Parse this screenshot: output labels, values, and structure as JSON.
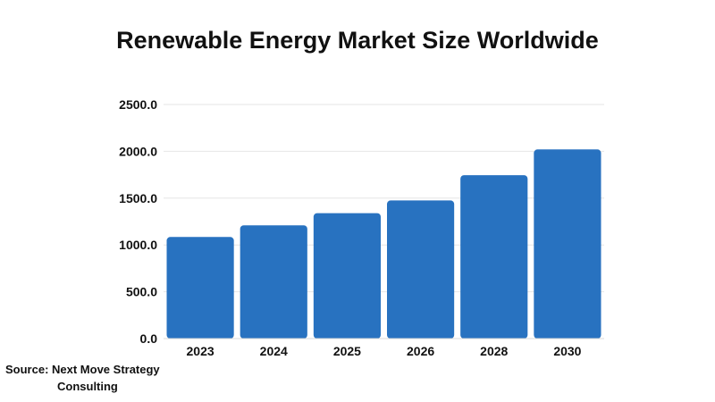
{
  "chart_data": {
    "type": "bar",
    "title": "Renewable Energy Market Size Worldwide",
    "categories": [
      "2023",
      "2024",
      "2025",
      "2026",
      "2028",
      "2030"
    ],
    "values": [
      1085,
      1210,
      1340,
      1475,
      1745,
      2020
    ],
    "ylim": [
      0,
      2500
    ],
    "yticks": [
      "0.0",
      "500.0",
      "1000.0",
      "1500.0",
      "2000.0",
      "2500.0"
    ],
    "xlabel": "",
    "ylabel": "",
    "grid": true,
    "bar_color": "#2872c0"
  },
  "source": {
    "line1": "Source: Next Move Strategy",
    "line2": "Consulting"
  }
}
